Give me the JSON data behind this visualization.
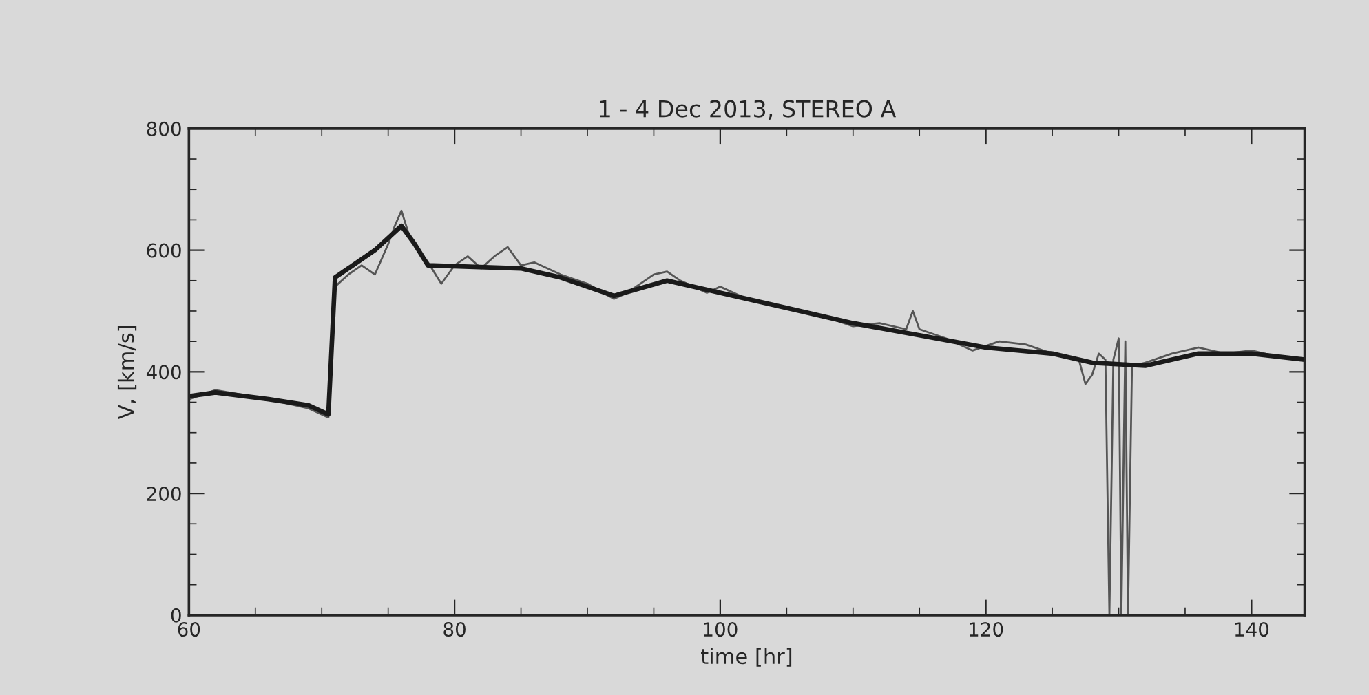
{
  "chart_data": {
    "type": "line",
    "title": "1 - 4 Dec 2013, STEREO A",
    "xlabel": "time [hr]",
    "ylabel": "V, [km/s]",
    "xlim": [
      60,
      144
    ],
    "ylim": [
      0,
      800
    ],
    "xticks": [
      60,
      80,
      100,
      120,
      140
    ],
    "yticks": [
      0,
      200,
      400,
      600,
      800
    ],
    "grid": false,
    "legend": false,
    "marker": "none",
    "line_style": "solid",
    "series": [
      {
        "color": "#555555",
        "x": [
          60,
          62,
          66,
          69,
          70.5,
          71,
          72,
          73,
          74,
          75,
          75.5,
          76,
          76.5,
          77,
          78,
          79,
          80,
          81,
          82,
          83,
          84,
          85,
          86,
          88,
          90,
          92,
          93,
          95,
          96,
          97,
          99,
          100,
          102,
          104,
          106,
          108,
          110,
          112,
          114,
          114.5,
          115,
          117,
          119,
          121,
          123,
          125,
          127,
          127.5,
          128,
          128.5,
          129,
          129.3,
          129.6,
          130,
          130.2,
          130.5,
          130.7,
          131,
          132,
          134,
          136,
          138,
          140,
          142,
          144
        ],
        "values": [
          355,
          370,
          355,
          340,
          325,
          540,
          560,
          575,
          560,
          610,
          640,
          665,
          630,
          610,
          580,
          545,
          575,
          590,
          570,
          590,
          605,
          575,
          580,
          560,
          545,
          520,
          530,
          560,
          565,
          550,
          530,
          540,
          520,
          510,
          500,
          490,
          475,
          480,
          470,
          500,
          470,
          455,
          435,
          450,
          445,
          430,
          420,
          380,
          395,
          430,
          420,
          0,
          420,
          455,
          0,
          450,
          0,
          410,
          415,
          430,
          440,
          430,
          435,
          425,
          420
        ]
      },
      {
        "color": "#1a1a1a",
        "x": [
          60,
          62,
          66,
          69,
          70.5,
          71,
          72,
          74,
          76,
          77,
          78,
          85,
          88,
          92,
          96,
          100,
          105,
          110,
          115,
          120,
          125,
          128,
          132,
          136,
          140,
          144
        ],
        "values": [
          360,
          366,
          355,
          345,
          330,
          555,
          570,
          600,
          640,
          610,
          575,
          570,
          555,
          525,
          550,
          530,
          505,
          480,
          460,
          440,
          430,
          415,
          410,
          430,
          430,
          420
        ]
      }
    ]
  }
}
